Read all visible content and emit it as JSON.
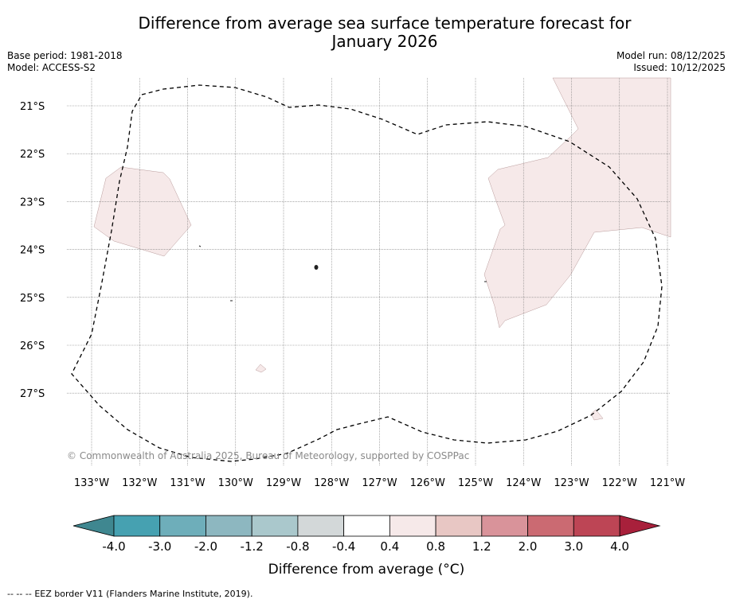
{
  "header": {
    "title_line1": "Difference from average sea surface temperature forecast for",
    "title_line2": "January 2026",
    "base_period": "Base period: 1981-2018",
    "model": "Model: ACCESS-S2",
    "model_run": "Model run: 08/12/2025",
    "issued": "Issued: 10/12/2025"
  },
  "map": {
    "lat_labels": [
      "21°S",
      "22°S",
      "23°S",
      "24°S",
      "25°S",
      "26°S",
      "27°S"
    ],
    "lon_labels": [
      "133°W",
      "132°W",
      "131°W",
      "130°W",
      "129°W",
      "128°W",
      "127°W",
      "126°W",
      "125°W",
      "124°W",
      "123°W",
      "122°W",
      "121°W"
    ],
    "copyright": "© Commonwealth of Australia 2025, Bureau of Meteorology, supported by COSPPac"
  },
  "colorbar": {
    "label": "Difference from average (°C)",
    "ticks": [
      "-4.0",
      "-3.0",
      "-2.0",
      "-1.2",
      "-0.8",
      "-0.4",
      "0.4",
      "0.8",
      "1.2",
      "2.0",
      "3.0",
      "4.0"
    ],
    "under_color": "#3f8790",
    "over_color": "#a8203b",
    "colors": [
      "#46a1b1",
      "#6eaeba",
      "#8db7c0",
      "#aac8cc",
      "#d3d8d9",
      "#ffffff",
      "#f6e9e9",
      "#e8c7c4",
      "#d9939a",
      "#cb6a72",
      "#bd4555"
    ]
  },
  "footer": {
    "legend_symbol": "--  --  --",
    "legend_text": "EEZ border V11 (Flanders Marine Institute, 2019)."
  }
}
